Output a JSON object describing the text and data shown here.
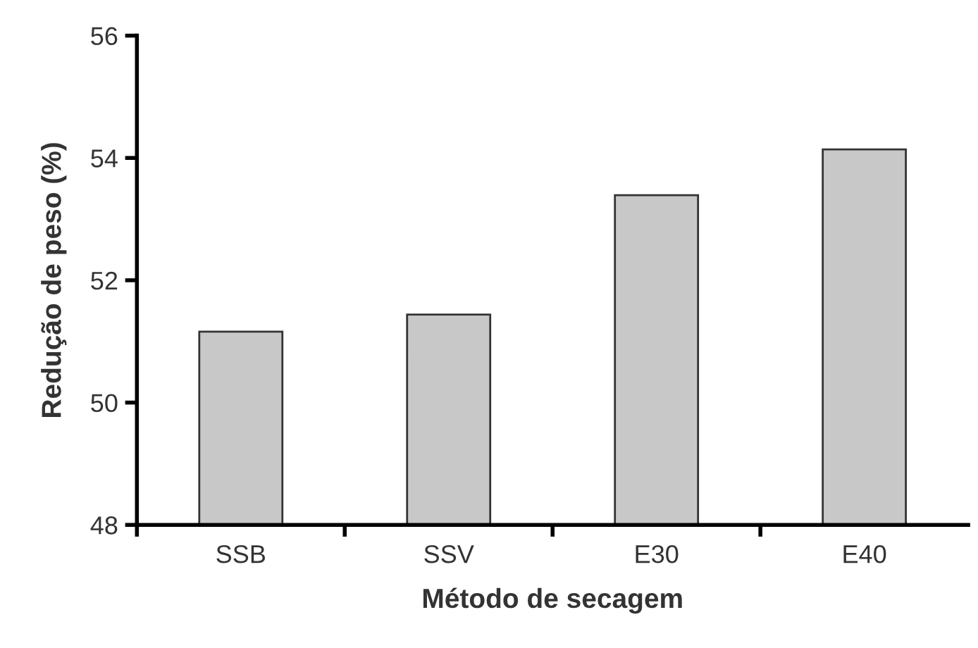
{
  "chart_data": {
    "type": "bar",
    "xlabel": "Método de secagem",
    "ylabel": "Redução de peso (%)",
    "categories": [
      "SSB",
      "SSV",
      "E30",
      "E40"
    ],
    "values": [
      51.16,
      51.44,
      53.39,
      54.14
    ],
    "color": "#c8c8c8",
    "ylim": [
      48,
      56
    ],
    "yticks": [
      48,
      50,
      52,
      54,
      56
    ],
    "grid": false
  }
}
